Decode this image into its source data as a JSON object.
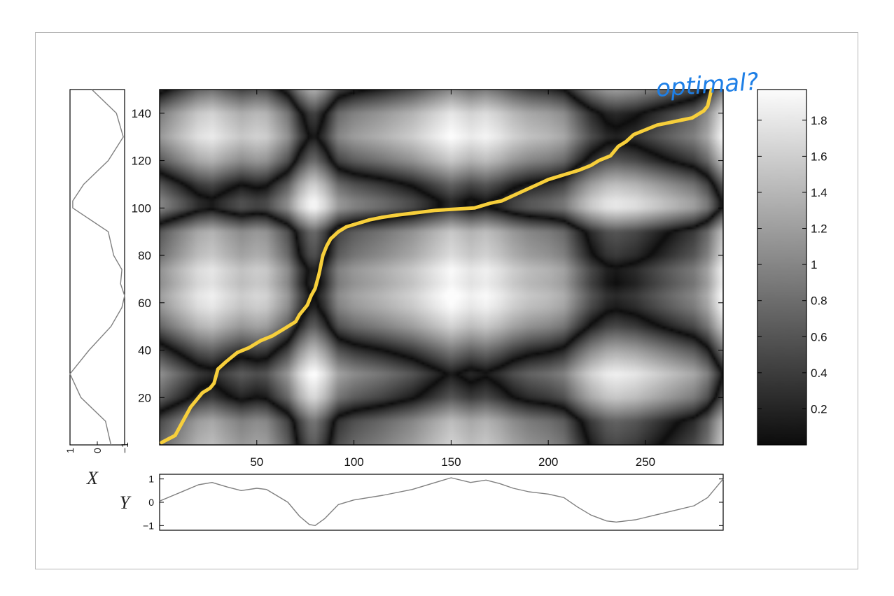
{
  "chart_data": [
    {
      "type": "heatmap",
      "title": "",
      "xlabel": "",
      "ylabel": "",
      "xlim": [
        0,
        290
      ],
      "ylim": [
        0,
        150
      ],
      "xticks": [
        50,
        100,
        150,
        200,
        250
      ],
      "yticks": [
        20,
        40,
        60,
        80,
        100,
        120,
        140
      ],
      "colormap": "gray",
      "colorbar": {
        "range": [
          0,
          1.97
        ],
        "ticks": [
          0.2,
          0.4,
          0.6,
          0.8,
          1,
          1.2,
          1.4,
          1.6,
          1.8
        ]
      },
      "path": {
        "color": "#f7cf3b",
        "x": [
          1,
          8,
          12,
          16,
          20,
          22,
          26,
          28,
          30,
          34,
          40,
          46,
          52,
          58,
          64,
          70,
          72,
          76,
          78,
          80,
          82,
          84,
          86,
          88,
          92,
          96,
          100,
          104,
          108,
          114,
          122,
          132,
          142,
          152,
          162,
          170,
          176,
          184,
          192,
          200,
          208,
          216,
          222,
          226,
          232,
          236,
          240,
          244,
          250,
          256,
          262,
          268,
          274,
          278,
          280,
          282,
          284
        ],
        "y": [
          1,
          4,
          10,
          16,
          20,
          22,
          24,
          26,
          32,
          35,
          39,
          41,
          44,
          46,
          49,
          52,
          55,
          59,
          63,
          66,
          72,
          80,
          84,
          87,
          90,
          92,
          93,
          94,
          95,
          96,
          97,
          98,
          99,
          99.5,
          100,
          102,
          103,
          106,
          109,
          112,
          114,
          116,
          118,
          120,
          122,
          126,
          128,
          131,
          133,
          135,
          136,
          137,
          138,
          140,
          141,
          143,
          150
        ]
      },
      "annotation": "optimal?"
    },
    {
      "type": "line",
      "series_label": "X",
      "orientation": "vertical",
      "xlim": [
        1,
        -1
      ],
      "xticks": [
        1,
        0,
        -1
      ],
      "x": [
        0,
        10,
        20,
        30,
        40,
        50,
        58,
        63,
        68,
        74,
        80,
        85,
        90,
        100,
        103,
        110,
        120,
        130,
        140,
        150
      ],
      "y": [
        -0.5,
        -0.3,
        0.6,
        1.0,
        0.3,
        -0.5,
        -0.9,
        -1.0,
        -0.85,
        -0.9,
        -0.6,
        -0.5,
        -0.4,
        0.9,
        0.9,
        0.5,
        -0.4,
        -0.95,
        -0.7,
        0.2
      ]
    },
    {
      "type": "line",
      "series_label": "Y",
      "xlim": [
        0,
        290
      ],
      "ylim": [
        -1.2,
        1.2
      ],
      "yticks": [
        1,
        0,
        -1
      ],
      "x": [
        0,
        10,
        20,
        27,
        35,
        42,
        50,
        55,
        60,
        66,
        72,
        77,
        80,
        85,
        92,
        100,
        115,
        130,
        140,
        150,
        160,
        168,
        175,
        182,
        190,
        200,
        208,
        215,
        222,
        230,
        235,
        245,
        255,
        265,
        275,
        282,
        290
      ],
      "y": [
        0.05,
        0.4,
        0.75,
        0.85,
        0.65,
        0.5,
        0.6,
        0.55,
        0.3,
        0.0,
        -0.6,
        -0.95,
        -1.0,
        -0.7,
        -0.1,
        0.1,
        0.3,
        0.55,
        0.8,
        1.05,
        0.85,
        0.95,
        0.8,
        0.6,
        0.45,
        0.35,
        0.2,
        -0.2,
        -0.55,
        -0.8,
        -0.85,
        -0.75,
        -0.55,
        -0.35,
        -0.15,
        0.2,
        1.0
      ]
    }
  ]
}
